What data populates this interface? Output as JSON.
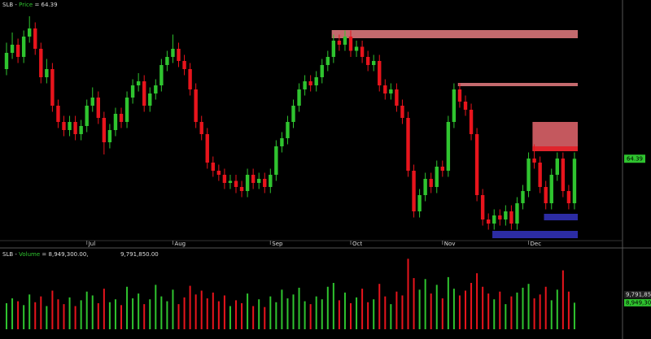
{
  "chart_data": {
    "type": "candlestick",
    "price_header": {
      "symbol": "SLB -",
      "name": "Price",
      "value_text": "= 64.39"
    },
    "volume_header": {
      "symbol": "SLB -",
      "name": "Volume",
      "value_text": "= 8,949,300.00,",
      "second_text": "9,791,850.00"
    },
    "categories": [
      null,
      null,
      null,
      null,
      null,
      null,
      null,
      null,
      null,
      null,
      null,
      null,
      null,
      null,
      "Jul",
      null,
      null,
      null,
      null,
      null,
      null,
      null,
      null,
      null,
      null,
      null,
      null,
      null,
      null,
      "Aug",
      null,
      null,
      null,
      null,
      null,
      null,
      null,
      null,
      null,
      null,
      null,
      null,
      null,
      null,
      null,
      null,
      "Sep",
      null,
      null,
      null,
      null,
      null,
      null,
      null,
      null,
      null,
      null,
      null,
      null,
      null,
      "Oct",
      null,
      null,
      null,
      null,
      null,
      null,
      null,
      null,
      null,
      null,
      null,
      null,
      null,
      null,
      null,
      "Nov",
      null,
      null,
      null,
      null,
      null,
      null,
      null,
      null,
      null,
      null,
      null,
      null,
      null,
      null,
      "Dec",
      null,
      null,
      null,
      null,
      null,
      null,
      null,
      null
    ],
    "open": [
      68.8,
      69.6,
      70.0,
      69.4,
      70.4,
      70.8,
      69.8,
      68.4,
      68.8,
      67.0,
      66.2,
      65.8,
      66.2,
      65.6,
      66.0,
      67.0,
      67.4,
      66.4,
      65.2,
      65.8,
      66.6,
      66.2,
      67.4,
      68.0,
      68.2,
      67.0,
      67.6,
      68.0,
      69.0,
      69.4,
      69.8,
      69.2,
      68.8,
      67.8,
      66.2,
      65.6,
      64.2,
      63.8,
      63.6,
      63.2,
      63.3,
      63.0,
      62.8,
      63.6,
      63.2,
      63.4,
      63.0,
      63.6,
      65.0,
      65.4,
      66.2,
      67.0,
      67.8,
      68.2,
      68.0,
      68.4,
      69.0,
      69.4,
      70.2,
      70.0,
      70.4,
      69.7,
      69.9,
      69.4,
      69.0,
      69.2,
      68.0,
      67.6,
      67.8,
      67.0,
      66.4,
      63.8,
      61.8,
      62.6,
      63.4,
      63.0,
      64.0,
      63.8,
      66.2,
      67.8,
      67.2,
      66.8,
      65.6,
      62.6,
      61.4,
      61.2,
      61.6,
      61.4,
      61.8,
      61.2,
      62.2,
      62.8,
      64.4,
      64.2,
      63.0,
      62.2,
      63.6,
      64.4,
      62.8,
      62.2
    ],
    "high": [
      70.1,
      70.6,
      70.3,
      70.7,
      71.4,
      71.1,
      70.1,
      69.3,
      69.1,
      67.3,
      66.5,
      66.5,
      66.5,
      66.3,
      67.3,
      67.9,
      67.7,
      66.7,
      66.1,
      66.9,
      66.9,
      67.7,
      68.3,
      68.6,
      68.5,
      67.9,
      68.3,
      69.3,
      69.7,
      70.5,
      70.1,
      69.5,
      69.1,
      68.1,
      66.5,
      65.9,
      64.5,
      64.1,
      63.9,
      63.6,
      63.6,
      63.3,
      63.9,
      63.9,
      63.7,
      63.7,
      63.9,
      65.3,
      65.7,
      66.5,
      67.3,
      68.1,
      68.5,
      68.5,
      68.7,
      69.3,
      69.7,
      70.5,
      70.5,
      70.7,
      70.7,
      70.2,
      70.2,
      69.7,
      69.5,
      69.5,
      68.3,
      68.1,
      68.1,
      67.3,
      66.7,
      64.1,
      62.9,
      63.7,
      63.7,
      64.3,
      64.3,
      66.5,
      68.1,
      68.1,
      67.5,
      67.1,
      65.9,
      62.9,
      61.7,
      61.9,
      61.9,
      62.1,
      62.1,
      62.5,
      63.1,
      64.7,
      65.1,
      64.5,
      63.3,
      63.9,
      64.7,
      64.7,
      63.1,
      64.7
    ],
    "low": [
      68.5,
      69.3,
      69.1,
      69.1,
      70.1,
      69.5,
      68.1,
      68.1,
      66.7,
      65.9,
      65.5,
      65.5,
      65.3,
      65.3,
      65.7,
      66.7,
      66.1,
      64.6,
      64.9,
      65.5,
      65.9,
      65.9,
      67.1,
      67.7,
      66.7,
      66.7,
      67.3,
      67.7,
      68.7,
      69.1,
      68.9,
      68.5,
      67.5,
      65.9,
      65.3,
      63.9,
      63.5,
      63.3,
      62.9,
      62.9,
      62.7,
      62.5,
      62.5,
      62.9,
      62.9,
      62.7,
      62.7,
      63.3,
      64.7,
      65.1,
      65.9,
      66.7,
      67.5,
      67.7,
      67.7,
      68.1,
      68.7,
      69.1,
      69.7,
      69.7,
      69.4,
      69.4,
      69.1,
      68.7,
      68.7,
      67.7,
      67.3,
      67.3,
      66.7,
      66.1,
      63.5,
      61.5,
      61.5,
      62.3,
      62.7,
      62.7,
      63.5,
      63.5,
      65.9,
      66.9,
      66.5,
      65.3,
      62.3,
      61.1,
      60.9,
      60.9,
      61.1,
      61.1,
      60.9,
      60.9,
      61.9,
      62.5,
      63.9,
      62.7,
      61.9,
      61.9,
      63.3,
      62.5,
      61.9,
      61.9
    ],
    "close": [
      69.6,
      70.0,
      69.4,
      70.4,
      70.8,
      69.8,
      68.4,
      68.8,
      67.0,
      66.2,
      65.8,
      66.2,
      65.6,
      66.0,
      67.0,
      67.4,
      66.4,
      65.2,
      65.8,
      66.6,
      66.2,
      67.4,
      68.0,
      68.2,
      67.0,
      67.6,
      68.0,
      69.0,
      69.4,
      69.8,
      69.2,
      68.8,
      67.8,
      66.2,
      65.6,
      64.2,
      63.8,
      63.6,
      63.2,
      63.3,
      63.0,
      62.8,
      63.6,
      63.2,
      63.4,
      63.0,
      63.6,
      65.0,
      65.4,
      66.2,
      67.0,
      67.8,
      68.2,
      68.0,
      68.4,
      69.0,
      69.4,
      70.2,
      70.0,
      70.4,
      69.7,
      69.9,
      69.4,
      69.0,
      69.2,
      68.0,
      67.6,
      67.8,
      67.0,
      66.4,
      63.8,
      61.8,
      62.6,
      63.4,
      63.0,
      64.0,
      63.8,
      66.2,
      67.8,
      67.2,
      66.8,
      65.6,
      62.6,
      61.4,
      61.2,
      61.6,
      61.4,
      61.8,
      61.2,
      62.2,
      62.8,
      64.4,
      64.2,
      63.0,
      62.2,
      63.6,
      64.4,
      62.8,
      62.2,
      64.39
    ],
    "up_color": "#2fc42f",
    "down_color": "#e8141c",
    "ylim": [
      60.2,
      72.2
    ],
    "yticks": [
      64.39
    ],
    "zones": [
      {
        "low": 70.32,
        "high": 70.72,
        "start": 57,
        "color": "#c46a6e"
      },
      {
        "low": 67.96,
        "high": 68.12,
        "start": 79,
        "color": "#c46a6e"
      },
      {
        "low": 64.76,
        "high": 66.2,
        "start": 92,
        "color": "#c4585e"
      },
      {
        "low": 64.76,
        "high": 65.0,
        "start": 92,
        "color": "#e0242c"
      },
      {
        "low": 61.36,
        "high": 61.68,
        "start": 94,
        "color": "#2c2ca4"
      },
      {
        "low": 60.48,
        "high": 60.84,
        "start": 85,
        "color": "#2c2ca4"
      }
    ],
    "volume": {
      "values": [
        8900000,
        9400000,
        9100000,
        8700000,
        9800000,
        9000000,
        9600000,
        8600000,
        10200000,
        9300000,
        8800000,
        9500000,
        8600000,
        9200000,
        10100000,
        9700000,
        8900000,
        10400000,
        9000000,
        9300000,
        8700000,
        10600000,
        9400000,
        9900000,
        8800000,
        9300000,
        10800000,
        9600000,
        9100000,
        10300000,
        8800000,
        9500000,
        10700000,
        9800000,
        10200000,
        9400000,
        10000000,
        9100000,
        9700000,
        8600000,
        9200000,
        8900000,
        9900000,
        8600000,
        9300000,
        8500000,
        9600000,
        9000000,
        10300000,
        9400000,
        9800000,
        10500000,
        9100000,
        8800000,
        9600000,
        9300000,
        10600000,
        11000000,
        9200000,
        10000000,
        8900000,
        9500000,
        10400000,
        9000000,
        9300000,
        10900000,
        9600000,
        8800000,
        10100000,
        9700000,
        13500000,
        11500000,
        10300000,
        11400000,
        9900000,
        10800000,
        9400000,
        11600000,
        10400000,
        9700000,
        10200000,
        11000000,
        12000000,
        10600000,
        9900000,
        9300000,
        10100000,
        8800000,
        9600000,
        10000000,
        10500000,
        10900000,
        9400000,
        9800000,
        10600000,
        9200000,
        10300000,
        12300000,
        10100000,
        8949300
      ],
      "ylim": [
        6200000,
        14200000
      ],
      "yticks": [
        {
          "value": 9791850,
          "label": "9,791,850"
        },
        {
          "value": 8949300,
          "label": "8,949,300"
        }
      ]
    }
  }
}
